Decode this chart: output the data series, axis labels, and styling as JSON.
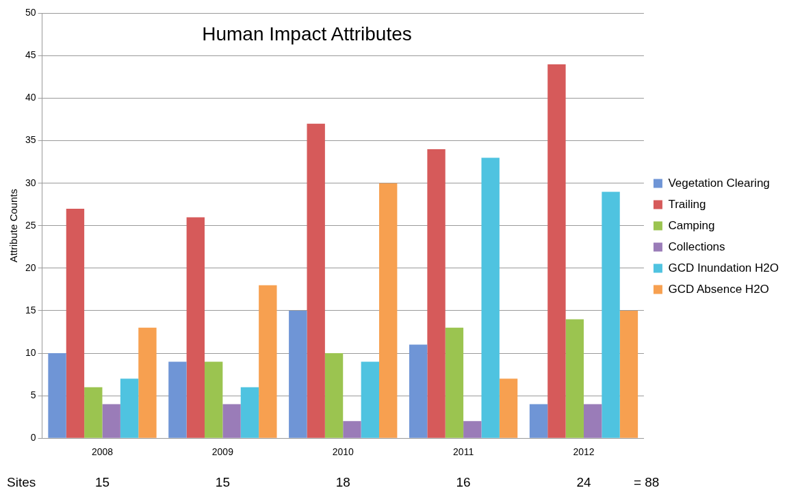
{
  "chart_data": {
    "type": "bar",
    "title": "Human Impact Attributes",
    "ylabel": "Attribute Counts",
    "categories": [
      "2008",
      "2009",
      "2010",
      "2011",
      "2012"
    ],
    "series": [
      {
        "name": "Vegetation Clearing",
        "color": "#6f95d6",
        "values": [
          10,
          9,
          15,
          11,
          4
        ]
      },
      {
        "name": "Trailing",
        "color": "#d65a5a",
        "values": [
          27,
          26,
          37,
          34,
          44
        ]
      },
      {
        "name": "Camping",
        "color": "#9bc450",
        "values": [
          6,
          9,
          10,
          13,
          14
        ]
      },
      {
        "name": "Collections",
        "color": "#9a7cb8",
        "values": [
          4,
          4,
          2,
          2,
          4
        ]
      },
      {
        "name": "GCD Inundation H2O",
        "color": "#4fc3e0",
        "values": [
          7,
          6,
          9,
          33,
          29
        ]
      },
      {
        "name": "GCD Absence H2O",
        "color": "#f7a050",
        "values": [
          13,
          18,
          30,
          7,
          15
        ]
      }
    ],
    "ylim": [
      0,
      50
    ],
    "yticks": [
      0,
      5,
      10,
      15,
      20,
      25,
      30,
      35,
      40,
      45,
      50
    ],
    "grid": "y",
    "legend": "right",
    "annotations": [
      "Sites",
      "15",
      "15",
      "18",
      "16",
      "24",
      "= 88"
    ]
  }
}
